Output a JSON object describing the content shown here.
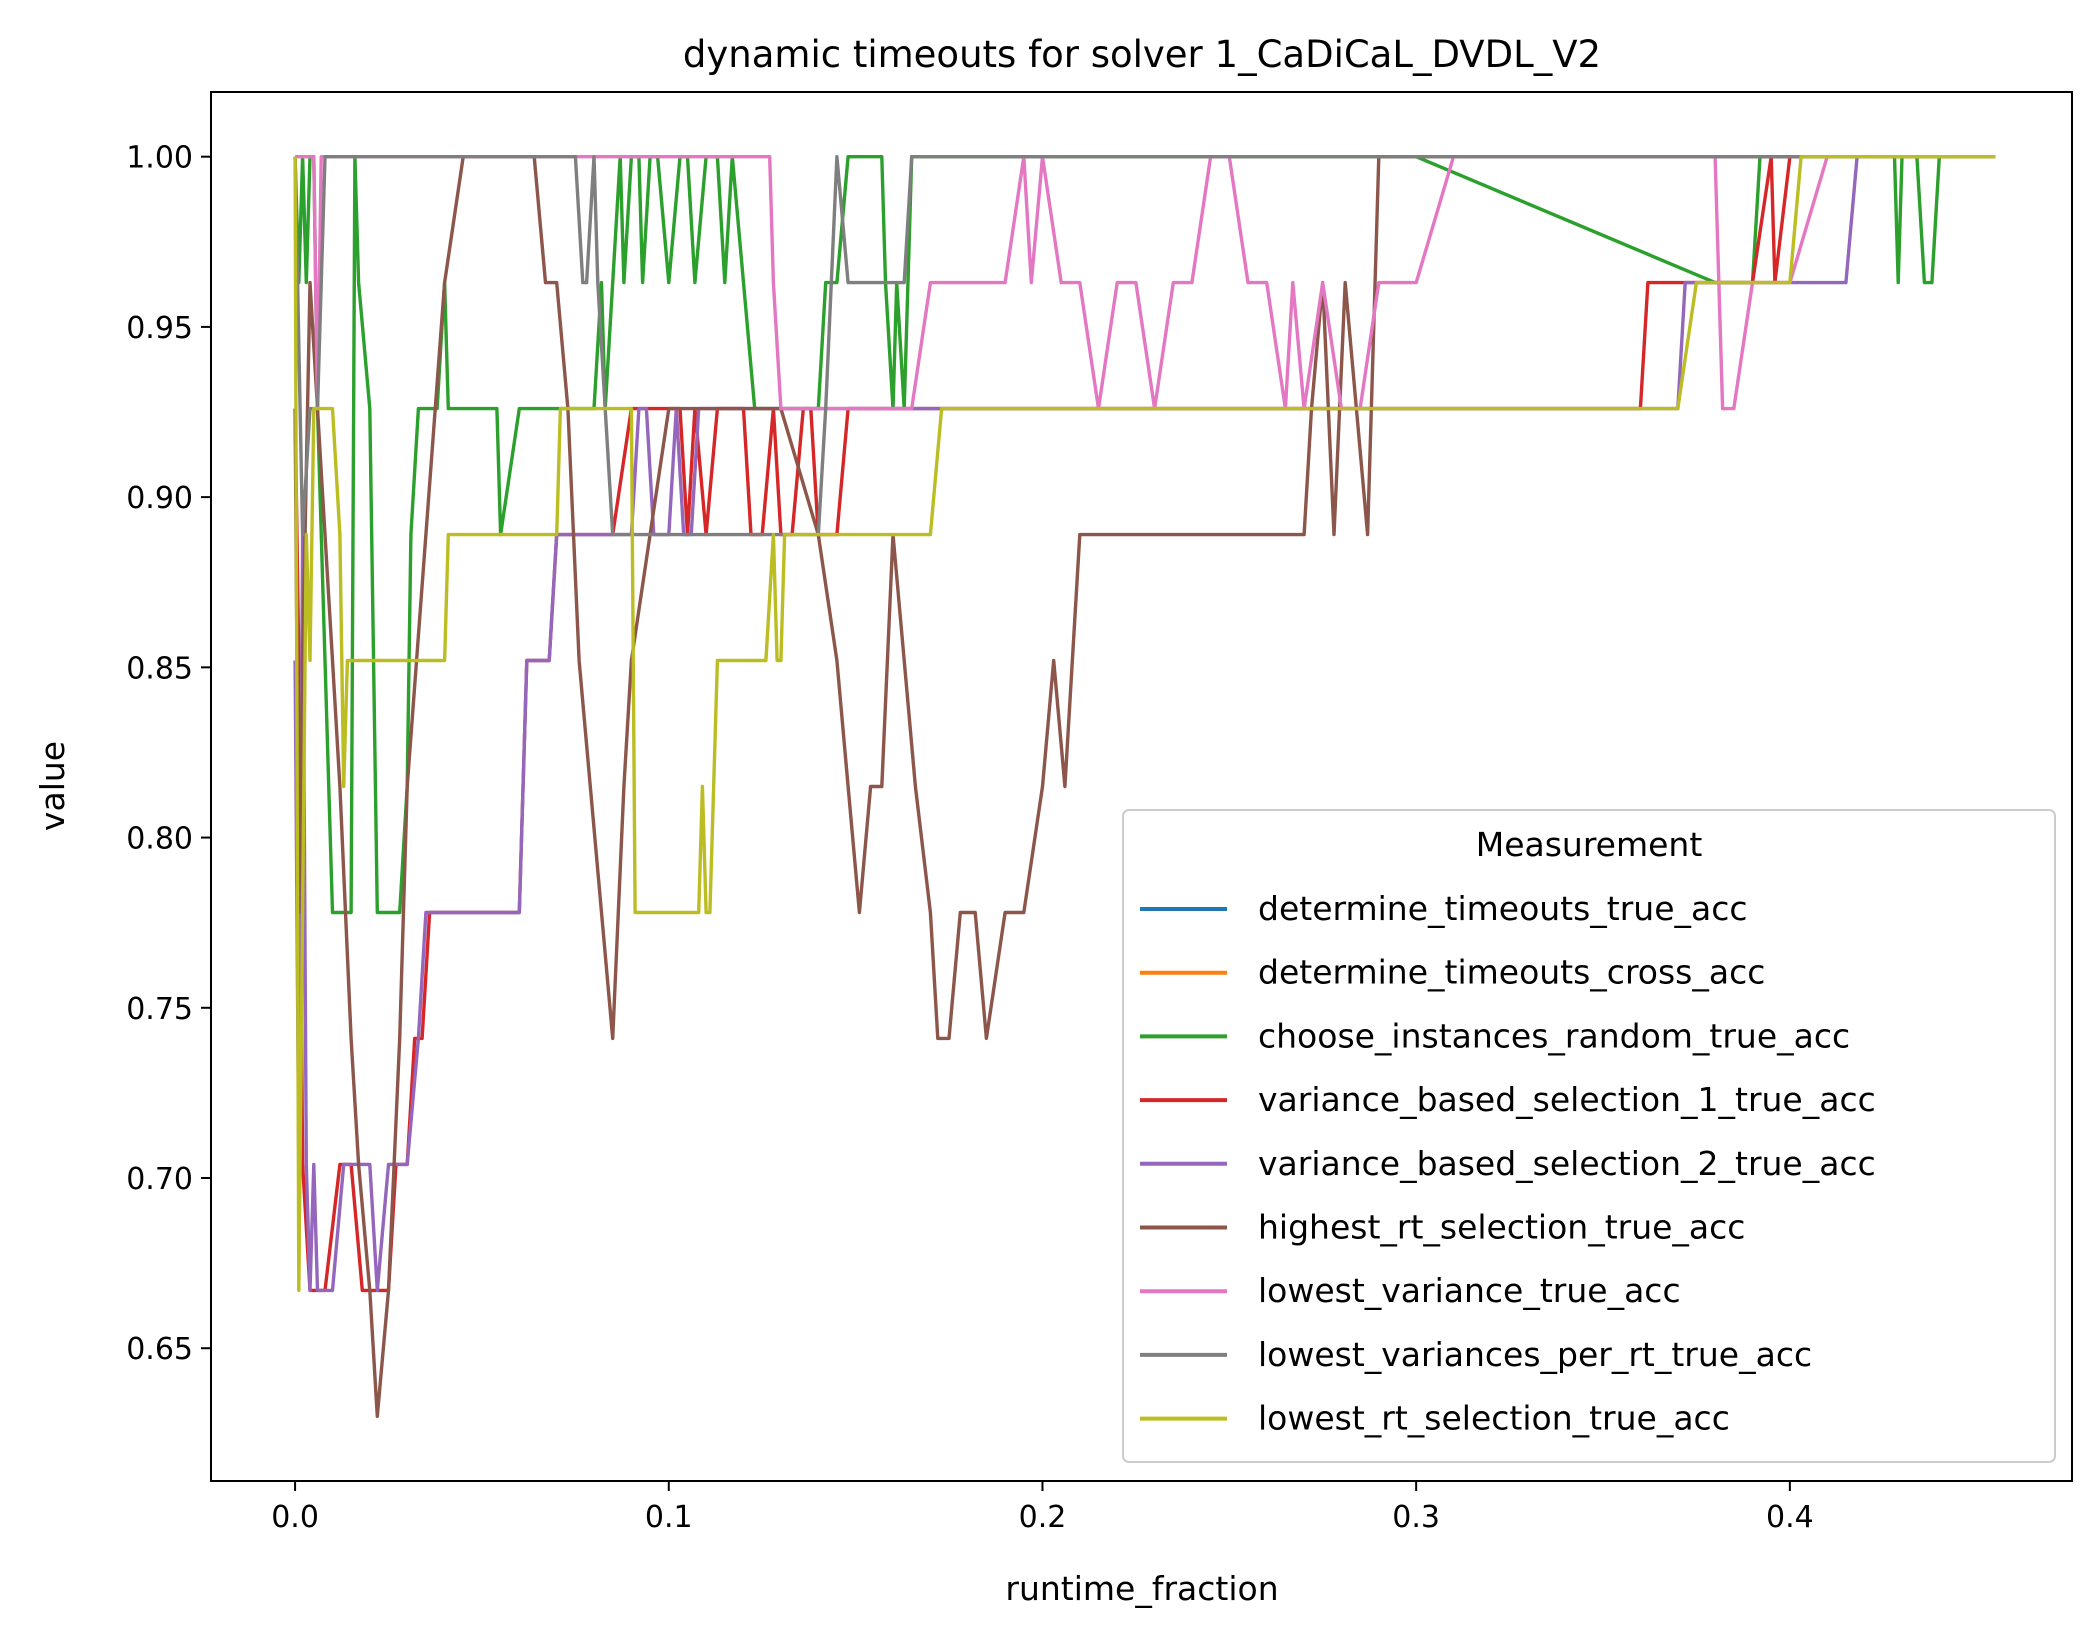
{
  "chart_data": {
    "type": "line",
    "title": "dynamic timeouts for solver 1_CaDiCaL_DVDL_V2",
    "xlabel": "runtime_fraction",
    "ylabel": "value",
    "xlim": [
      -0.0225,
      0.4755
    ],
    "ylim": [
      0.611,
      1.019
    ],
    "x_ticks": [
      {
        "value": 0.0,
        "label": "0.0"
      },
      {
        "value": 0.1,
        "label": "0.1"
      },
      {
        "value": 0.2,
        "label": "0.2"
      },
      {
        "value": 0.3,
        "label": "0.3"
      },
      {
        "value": 0.4,
        "label": "0.4"
      }
    ],
    "y_ticks": [
      {
        "value": 0.65,
        "label": "0.65"
      },
      {
        "value": 0.7,
        "label": "0.70"
      },
      {
        "value": 0.75,
        "label": "0.75"
      },
      {
        "value": 0.8,
        "label": "0.80"
      },
      {
        "value": 0.85,
        "label": "0.85"
      },
      {
        "value": 0.9,
        "label": "0.90"
      },
      {
        "value": 0.95,
        "label": "0.95"
      },
      {
        "value": 1.0,
        "label": "1.00"
      }
    ],
    "grid": false,
    "legend": {
      "title": "Measurement",
      "placement": "lower right"
    },
    "series": [
      {
        "name": "determine_timeouts_true_acc",
        "color": "#1f77b4",
        "x": [],
        "y": []
      },
      {
        "name": "determine_timeouts_cross_acc",
        "color": "#ff7f0e",
        "x": [],
        "y": []
      },
      {
        "name": "choose_instances_random_true_acc",
        "color": "#2ca02c",
        "x": [
          0.0,
          0.001,
          0.002,
          0.003,
          0.004,
          0.005,
          0.006,
          0.008,
          0.01,
          0.015,
          0.016,
          0.017,
          0.02,
          0.022,
          0.023,
          0.025,
          0.028,
          0.03,
          0.031,
          0.033,
          0.035,
          0.038,
          0.04,
          0.041,
          0.045,
          0.05,
          0.054,
          0.055,
          0.06,
          0.065,
          0.07,
          0.075,
          0.08,
          0.082,
          0.083,
          0.085,
          0.087,
          0.088,
          0.09,
          0.092,
          0.093,
          0.095,
          0.097,
          0.1,
          0.103,
          0.105,
          0.107,
          0.11,
          0.113,
          0.115,
          0.117,
          0.12,
          0.123,
          0.125,
          0.128,
          0.14,
          0.142,
          0.145,
          0.148,
          0.15,
          0.157,
          0.158,
          0.16,
          0.161,
          0.163,
          0.165,
          0.17,
          0.175,
          0.2,
          0.3,
          0.38,
          0.39,
          0.392,
          0.394,
          0.396,
          0.398,
          0.4,
          0.41,
          0.42,
          0.428,
          0.429,
          0.43,
          0.432,
          0.434,
          0.436,
          0.438,
          0.44,
          0.455
        ],
        "y": [
          1.0,
          0.963,
          1.0,
          0.963,
          1.0,
          1.0,
          0.926,
          0.852,
          0.778,
          0.778,
          1.0,
          0.963,
          0.926,
          0.778,
          0.778,
          0.778,
          0.778,
          0.815,
          0.889,
          0.926,
          0.926,
          0.926,
          0.963,
          0.926,
          0.926,
          0.926,
          0.926,
          0.889,
          0.926,
          0.926,
          0.926,
          0.926,
          0.926,
          0.963,
          0.926,
          0.963,
          1.0,
          0.963,
          1.0,
          1.0,
          0.963,
          1.0,
          1.0,
          0.963,
          1.0,
          1.0,
          0.963,
          1.0,
          1.0,
          0.963,
          1.0,
          0.963,
          0.926,
          0.926,
          0.926,
          0.926,
          0.963,
          0.963,
          1.0,
          1.0,
          1.0,
          0.963,
          0.926,
          0.963,
          0.926,
          1.0,
          1.0,
          1.0,
          1.0,
          1.0,
          0.963,
          0.963,
          1.0,
          1.0,
          1.0,
          1.0,
          1.0,
          1.0,
          1.0,
          1.0,
          0.963,
          1.0,
          1.0,
          1.0,
          0.963,
          0.963,
          1.0,
          1.0
        ]
      },
      {
        "name": "variance_based_selection_1_true_acc",
        "color": "#d62728",
        "x": [
          0.0,
          0.001,
          0.002,
          0.004,
          0.006,
          0.008,
          0.012,
          0.015,
          0.018,
          0.02,
          0.022,
          0.025,
          0.027,
          0.03,
          0.032,
          0.034,
          0.036,
          0.038,
          0.04,
          0.05,
          0.06,
          0.062,
          0.065,
          0.068,
          0.07,
          0.075,
          0.08,
          0.085,
          0.09,
          0.095,
          0.1,
          0.103,
          0.105,
          0.107,
          0.11,
          0.113,
          0.115,
          0.12,
          0.122,
          0.125,
          0.128,
          0.13,
          0.133,
          0.136,
          0.138,
          0.14,
          0.145,
          0.148,
          0.15,
          0.2,
          0.3,
          0.36,
          0.362,
          0.37,
          0.38,
          0.39,
          0.395,
          0.396,
          0.4,
          0.41,
          0.455
        ],
        "y": [
          0.926,
          0.852,
          0.704,
          0.667,
          0.667,
          0.667,
          0.704,
          0.704,
          0.667,
          0.667,
          0.667,
          0.667,
          0.704,
          0.704,
          0.741,
          0.741,
          0.778,
          0.778,
          0.778,
          0.778,
          0.778,
          0.852,
          0.852,
          0.852,
          0.889,
          0.889,
          0.889,
          0.889,
          0.926,
          0.926,
          0.926,
          0.926,
          0.889,
          0.926,
          0.889,
          0.926,
          0.926,
          0.926,
          0.889,
          0.889,
          0.926,
          0.889,
          0.889,
          0.926,
          0.926,
          0.889,
          0.889,
          0.926,
          0.926,
          0.926,
          0.926,
          0.926,
          0.963,
          0.963,
          0.963,
          0.963,
          1.0,
          0.963,
          1.0,
          1.0,
          1.0
        ]
      },
      {
        "name": "variance_based_selection_2_true_acc",
        "color": "#9467bd",
        "x": [
          0.0,
          0.001,
          0.002,
          0.003,
          0.004,
          0.005,
          0.006,
          0.01,
          0.013,
          0.015,
          0.02,
          0.022,
          0.025,
          0.027,
          0.03,
          0.033,
          0.035,
          0.038,
          0.04,
          0.06,
          0.062,
          0.065,
          0.068,
          0.07,
          0.072,
          0.075,
          0.08,
          0.085,
          0.09,
          0.092,
          0.094,
          0.096,
          0.1,
          0.102,
          0.104,
          0.106,
          0.108,
          0.11,
          0.113,
          0.116,
          0.12,
          0.15,
          0.17,
          0.175,
          0.2,
          0.3,
          0.37,
          0.372,
          0.38,
          0.39,
          0.4,
          0.41,
          0.415,
          0.418,
          0.455
        ],
        "y": [
          0.852,
          0.704,
          0.889,
          0.704,
          0.667,
          0.704,
          0.667,
          0.667,
          0.704,
          0.704,
          0.704,
          0.667,
          0.704,
          0.704,
          0.704,
          0.741,
          0.778,
          0.778,
          0.778,
          0.778,
          0.852,
          0.852,
          0.852,
          0.889,
          0.889,
          0.889,
          0.889,
          0.889,
          0.889,
          0.926,
          0.926,
          0.889,
          0.889,
          0.926,
          0.889,
          0.889,
          0.926,
          0.926,
          0.926,
          0.926,
          0.926,
          0.926,
          0.926,
          0.926,
          0.926,
          0.926,
          0.926,
          0.963,
          0.963,
          0.963,
          0.963,
          0.963,
          0.963,
          1.0,
          1.0
        ]
      },
      {
        "name": "highest_rt_selection_true_acc",
        "color": "#8c564b",
        "x": [
          0.0,
          0.001,
          0.002,
          0.004,
          0.006,
          0.008,
          0.01,
          0.012,
          0.015,
          0.017,
          0.02,
          0.022,
          0.025,
          0.028,
          0.03,
          0.035,
          0.04,
          0.045,
          0.05,
          0.055,
          0.058,
          0.061,
          0.064,
          0.067,
          0.07,
          0.073,
          0.076,
          0.079,
          0.082,
          0.085,
          0.088,
          0.09,
          0.095,
          0.1,
          0.12,
          0.13,
          0.14,
          0.145,
          0.148,
          0.151,
          0.154,
          0.157,
          0.16,
          0.163,
          0.166,
          0.17,
          0.172,
          0.175,
          0.178,
          0.18,
          0.182,
          0.185,
          0.19,
          0.195,
          0.2,
          0.203,
          0.206,
          0.21,
          0.214,
          0.218,
          0.25,
          0.27,
          0.272,
          0.275,
          0.278,
          0.281,
          0.284,
          0.287,
          0.29,
          0.3,
          0.4,
          0.455
        ],
        "y": [
          0.926,
          0.778,
          0.852,
          0.963,
          0.926,
          0.889,
          0.852,
          0.815,
          0.741,
          0.704,
          0.667,
          0.63,
          0.667,
          0.741,
          0.815,
          0.889,
          0.963,
          1.0,
          1.0,
          1.0,
          1.0,
          1.0,
          1.0,
          0.963,
          0.963,
          0.926,
          0.852,
          0.815,
          0.778,
          0.741,
          0.815,
          0.852,
          0.889,
          0.926,
          0.926,
          0.926,
          0.889,
          0.852,
          0.815,
          0.778,
          0.815,
          0.815,
          0.889,
          0.852,
          0.815,
          0.778,
          0.741,
          0.741,
          0.778,
          0.778,
          0.778,
          0.741,
          0.778,
          0.778,
          0.815,
          0.852,
          0.815,
          0.889,
          0.889,
          0.889,
          0.889,
          0.889,
          0.926,
          0.963,
          0.889,
          0.963,
          0.926,
          0.889,
          1.0,
          1.0,
          1.0,
          1.0
        ]
      },
      {
        "name": "lowest_variance_true_acc",
        "color": "#e377c2",
        "x": [
          0.0,
          0.005,
          0.006,
          0.007,
          0.008,
          0.05,
          0.1,
          0.127,
          0.128,
          0.13,
          0.15,
          0.16,
          0.165,
          0.17,
          0.175,
          0.18,
          0.185,
          0.19,
          0.195,
          0.197,
          0.2,
          0.205,
          0.21,
          0.215,
          0.22,
          0.225,
          0.23,
          0.235,
          0.24,
          0.245,
          0.25,
          0.255,
          0.26,
          0.265,
          0.267,
          0.27,
          0.275,
          0.28,
          0.285,
          0.29,
          0.295,
          0.3,
          0.31,
          0.35,
          0.38,
          0.382,
          0.385,
          0.39,
          0.4,
          0.41,
          0.455
        ],
        "y": [
          1.0,
          1.0,
          0.926,
          1.0,
          1.0,
          1.0,
          1.0,
          1.0,
          0.963,
          0.926,
          0.926,
          0.926,
          0.926,
          0.963,
          0.963,
          0.963,
          0.963,
          0.963,
          1.0,
          0.963,
          1.0,
          0.963,
          0.963,
          0.926,
          0.963,
          0.963,
          0.926,
          0.963,
          0.963,
          1.0,
          1.0,
          0.963,
          0.963,
          0.926,
          0.963,
          0.926,
          0.963,
          0.926,
          0.926,
          0.963,
          0.963,
          0.963,
          1.0,
          1.0,
          1.0,
          0.926,
          0.926,
          0.963,
          0.963,
          1.0,
          1.0
        ]
      },
      {
        "name": "lowest_variances_per_rt_true_acc",
        "color": "#7f7f7f",
        "x": [
          0.0,
          0.002,
          0.004,
          0.006,
          0.008,
          0.05,
          0.075,
          0.077,
          0.078,
          0.08,
          0.081,
          0.083,
          0.085,
          0.09,
          0.1,
          0.12,
          0.13,
          0.14,
          0.142,
          0.145,
          0.148,
          0.15,
          0.155,
          0.16,
          0.163,
          0.165,
          0.2,
          0.3,
          0.4,
          0.455
        ],
        "y": [
          1.0,
          0.889,
          0.926,
          0.926,
          1.0,
          1.0,
          1.0,
          0.963,
          0.963,
          1.0,
          0.963,
          0.926,
          0.889,
          0.889,
          0.889,
          0.889,
          0.889,
          0.889,
          0.926,
          1.0,
          0.963,
          0.963,
          0.963,
          0.963,
          0.963,
          1.0,
          1.0,
          1.0,
          1.0,
          1.0
        ]
      },
      {
        "name": "lowest_rt_selection_true_acc",
        "color": "#bcbd22",
        "x": [
          0.0,
          0.001,
          0.002,
          0.003,
          0.004,
          0.005,
          0.006,
          0.008,
          0.01,
          0.012,
          0.013,
          0.014,
          0.015,
          0.02,
          0.025,
          0.03,
          0.035,
          0.04,
          0.041,
          0.05,
          0.06,
          0.07,
          0.071,
          0.08,
          0.09,
          0.091,
          0.1,
          0.108,
          0.109,
          0.11,
          0.111,
          0.113,
          0.114,
          0.12,
          0.125,
          0.126,
          0.128,
          0.129,
          0.13,
          0.131,
          0.133,
          0.135,
          0.14,
          0.15,
          0.17,
          0.173,
          0.2,
          0.3,
          0.37,
          0.375,
          0.38,
          0.39,
          0.4,
          0.403,
          0.41,
          0.455
        ],
        "y": [
          1.0,
          0.667,
          0.778,
          0.889,
          0.852,
          0.926,
          0.926,
          0.926,
          0.926,
          0.889,
          0.815,
          0.852,
          0.852,
          0.852,
          0.852,
          0.852,
          0.852,
          0.852,
          0.889,
          0.889,
          0.889,
          0.889,
          0.926,
          0.926,
          0.926,
          0.778,
          0.778,
          0.778,
          0.815,
          0.778,
          0.778,
          0.852,
          0.852,
          0.852,
          0.852,
          0.852,
          0.889,
          0.852,
          0.852,
          0.889,
          0.889,
          0.889,
          0.889,
          0.889,
          0.889,
          0.926,
          0.926,
          0.926,
          0.926,
          0.963,
          0.963,
          0.963,
          0.963,
          1.0,
          1.0,
          1.0
        ]
      }
    ]
  }
}
